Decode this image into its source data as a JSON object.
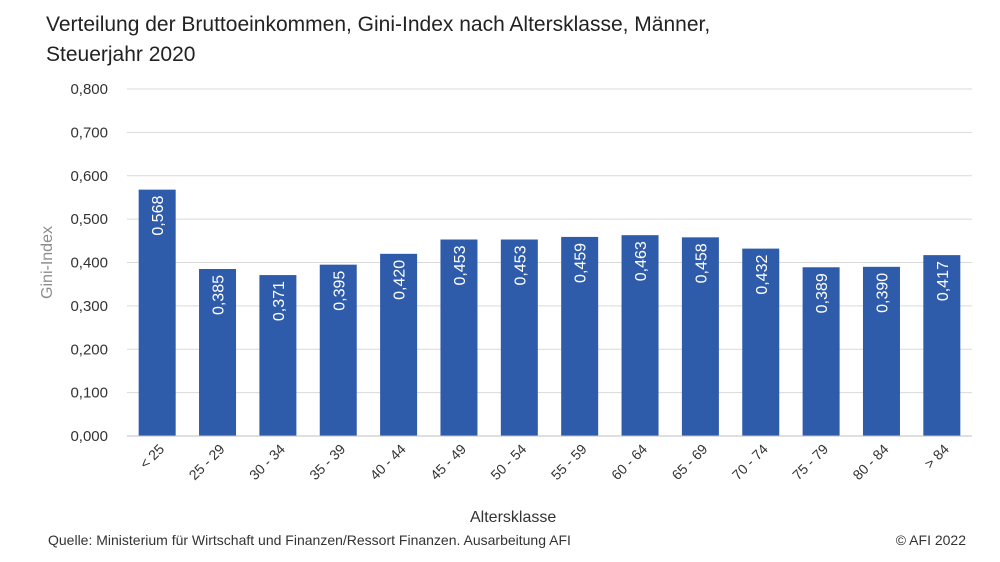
{
  "title": {
    "line1": "Verteilung der Bruttoeinkommen, Gini-Index nach Altersklasse, Männer,",
    "line2": "Steuerjahr 2020"
  },
  "footer": {
    "source": "Quelle: Ministerium für Wirtschaft und Finanzen/Ressort Finanzen. Ausarbeitung AFI",
    "copyright": "© AFI 2022"
  },
  "colors": {
    "bar": "#2E5BAA",
    "grid": "#D9D9D9",
    "axis_text": "#333333",
    "ylabel_text": "#8C8C8C",
    "data_label": "#FFFFFF"
  },
  "chart_data": {
    "type": "bar",
    "title": "Verteilung der Bruttoeinkommen, Gini-Index nach Altersklasse, Männer, Steuerjahr 2020",
    "xlabel": "Altersklasse",
    "ylabel": "Gini-Index",
    "ylim": [
      0,
      0.8
    ],
    "yticks": [
      0,
      0.1,
      0.2,
      0.3,
      0.4,
      0.5,
      0.6,
      0.7,
      0.8
    ],
    "ytick_labels": [
      "0,000",
      "0,100",
      "0,200",
      "0,300",
      "0,400",
      "0,500",
      "0,600",
      "0,700",
      "0,800"
    ],
    "grid": true,
    "legend": "none",
    "categories": [
      "< 25",
      "25 - 29",
      "30 - 34",
      "35 - 39",
      "40 - 44",
      "45 - 49",
      "50 - 54",
      "55 - 59",
      "60 - 64",
      "65 - 69",
      "70 - 74",
      "75 - 79",
      "80 - 84",
      "> 84"
    ],
    "values": [
      0.568,
      0.385,
      0.371,
      0.395,
      0.42,
      0.453,
      0.453,
      0.459,
      0.463,
      0.458,
      0.432,
      0.389,
      0.39,
      0.417
    ],
    "data_labels": [
      "0,568",
      "0,385",
      "0,371",
      "0,395",
      "0,420",
      "0,453",
      "0,453",
      "0,459",
      "0,463",
      "0,458",
      "0,432",
      "0,389",
      "0,390",
      "0,417"
    ]
  }
}
